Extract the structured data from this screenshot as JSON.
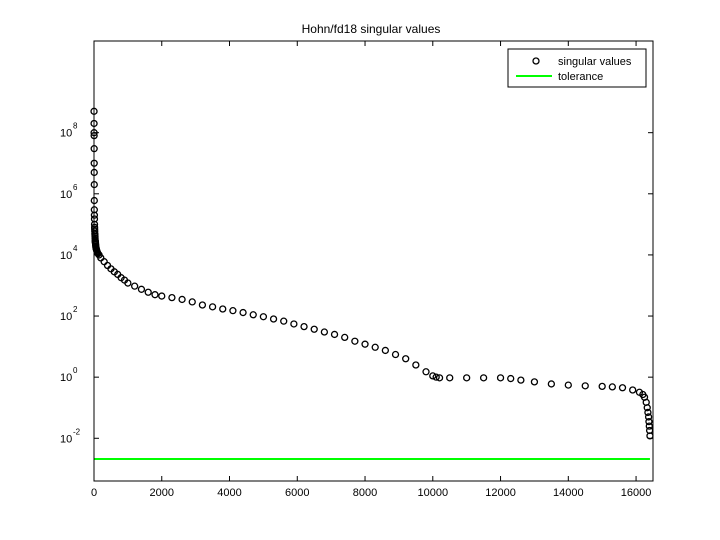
{
  "chart_data": {
    "type": "scatter",
    "title": "Hohn/fd18 singular values",
    "xlabel": "",
    "ylabel": "",
    "xlim": [
      0,
      16500
    ],
    "ylim": [
      0.0004,
      100000000000
    ],
    "yscale": "log",
    "grid": false,
    "legend_position": "top-right",
    "x_ticks": [
      0,
      2000,
      4000,
      6000,
      8000,
      10000,
      12000,
      14000,
      16000
    ],
    "x_tick_labels": [
      "0",
      "2000",
      "4000",
      "6000",
      "8000",
      "10000",
      "12000",
      "14000",
      "16000"
    ],
    "y_ticks": [
      0.01,
      1,
      100,
      10000,
      1000000,
      100000000
    ],
    "y_tick_labels": [
      {
        "base": "10",
        "exp": "-2"
      },
      {
        "base": "10",
        "exp": "0"
      },
      {
        "base": "10",
        "exp": "2"
      },
      {
        "base": "10",
        "exp": "4"
      },
      {
        "base": "10",
        "exp": "6"
      },
      {
        "base": "10",
        "exp": "8"
      }
    ],
    "series": [
      {
        "name": "singular values",
        "marker": "circle",
        "color": "#000000",
        "x": [
          1,
          2,
          3,
          4,
          5,
          6,
          7,
          8,
          9,
          10,
          12,
          14,
          16,
          18,
          20,
          22,
          25,
          28,
          30,
          32,
          35,
          38,
          40,
          42,
          45,
          48,
          50,
          55,
          60,
          65,
          70,
          80,
          90,
          100,
          120,
          150,
          200,
          300,
          400,
          500,
          600,
          700,
          800,
          900,
          1000,
          1200,
          1400,
          1600,
          1800,
          2000,
          2300,
          2600,
          2900,
          3200,
          3500,
          3800,
          4100,
          4400,
          4700,
          5000,
          5300,
          5600,
          5900,
          6200,
          6500,
          6800,
          7100,
          7400,
          7700,
          8000,
          8300,
          8600,
          8900,
          9200,
          9500,
          9800,
          10000,
          10100,
          10200,
          10500,
          11000,
          11500,
          12000,
          12300,
          12600,
          13000,
          13500,
          14000,
          14500,
          15000,
          15300,
          15600,
          15900,
          16100,
          16200,
          16250,
          16300,
          16330,
          16350,
          16370,
          16380,
          16390,
          16400,
          16410
        ],
        "y": [
          500000000,
          200000000,
          100000000,
          80000000,
          30000000,
          10000000,
          5000000,
          2000000,
          600000,
          300000,
          200000,
          150000,
          100000,
          80000,
          70000,
          60000,
          50000,
          45000,
          40000,
          35000,
          30000,
          28000,
          26000,
          25000,
          24000,
          22000,
          20000,
          18000,
          17000,
          16000,
          15000,
          14000,
          13000,
          12000,
          11000,
          10000,
          8000,
          6000,
          4500,
          3500,
          2800,
          2300,
          1800,
          1500,
          1200,
          950,
          750,
          600,
          500,
          450,
          400,
          350,
          290,
          230,
          200,
          170,
          150,
          130,
          110,
          95,
          80,
          68,
          55,
          45,
          37,
          30,
          25,
          20,
          15,
          12,
          9.5,
          7.5,
          5.5,
          4,
          2.5,
          1.5,
          1.1,
          1.0,
          0.95,
          0.95,
          0.95,
          0.95,
          0.95,
          0.9,
          0.8,
          0.7,
          0.6,
          0.55,
          0.52,
          0.5,
          0.48,
          0.45,
          0.38,
          0.32,
          0.27,
          0.22,
          0.15,
          0.1,
          0.07,
          0.05,
          0.035,
          0.025,
          0.018,
          0.012
        ]
      },
      {
        "name": "tolerance",
        "type": "line",
        "color": "#00ff00",
        "x": [
          0,
          16410
        ],
        "y": [
          0.0021,
          0.0021
        ]
      }
    ]
  }
}
